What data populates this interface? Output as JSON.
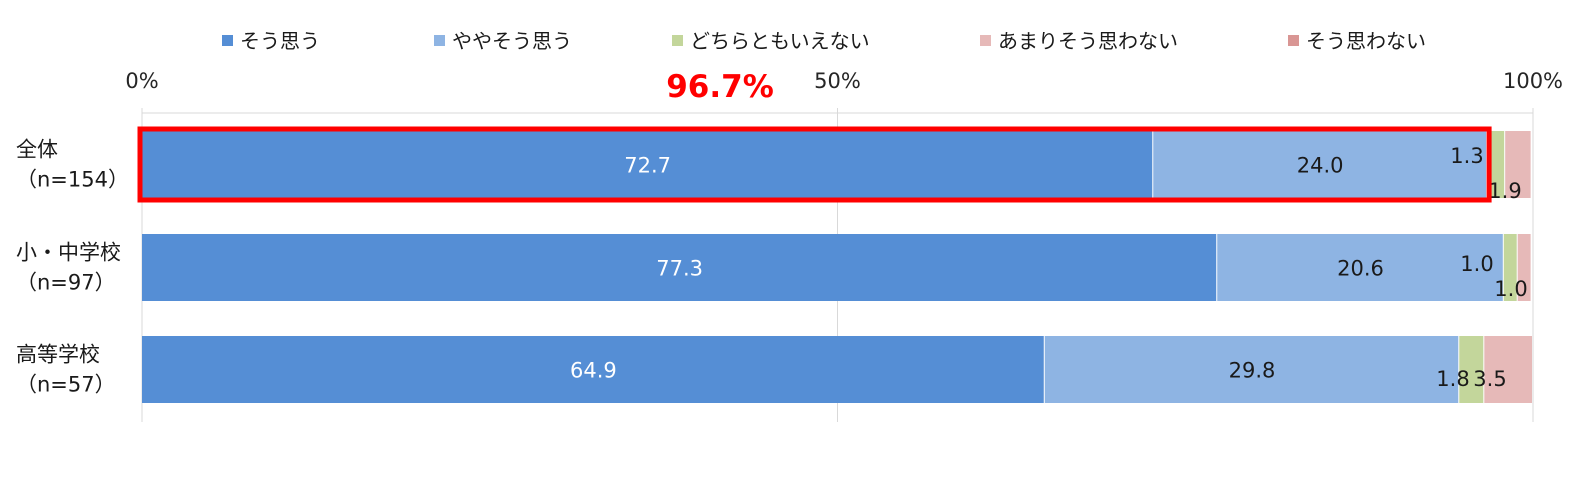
{
  "chart_data": {
    "type": "bar",
    "orientation": "horizontal",
    "stacked": true,
    "xlim": [
      0,
      100
    ],
    "x_ticks": [
      "0%",
      "50%",
      "100%"
    ],
    "categories": [
      [
        "全体",
        "（n=154）"
      ],
      [
        "小・中学校",
        "（n=97）"
      ],
      [
        "高等学校",
        "（n=57）"
      ]
    ],
    "series": [
      {
        "name": "そう思う",
        "color": "#558ed5",
        "values": [
          72.7,
          77.3,
          64.9
        ]
      },
      {
        "name": "ややそう思う",
        "color": "#8eb4e3",
        "values": [
          24.0,
          20.6,
          29.8
        ]
      },
      {
        "name": "どちらともいえない",
        "color": "#c3d69b",
        "values": [
          1.3,
          1.0,
          1.8
        ]
      },
      {
        "name": "あまりそう思わない",
        "color": "#e6b9b8",
        "values": [
          1.9,
          1.0,
          3.5
        ]
      },
      {
        "name": "そう思わない",
        "color": "#d99694",
        "values": [
          0,
          0,
          0
        ]
      }
    ],
    "annotation": {
      "text": "96.7%",
      "color": "#ff0000",
      "category": "全体",
      "spans_series": [
        "そう思う",
        "ややそう思う"
      ]
    },
    "legend_position": "top",
    "grid": true
  }
}
